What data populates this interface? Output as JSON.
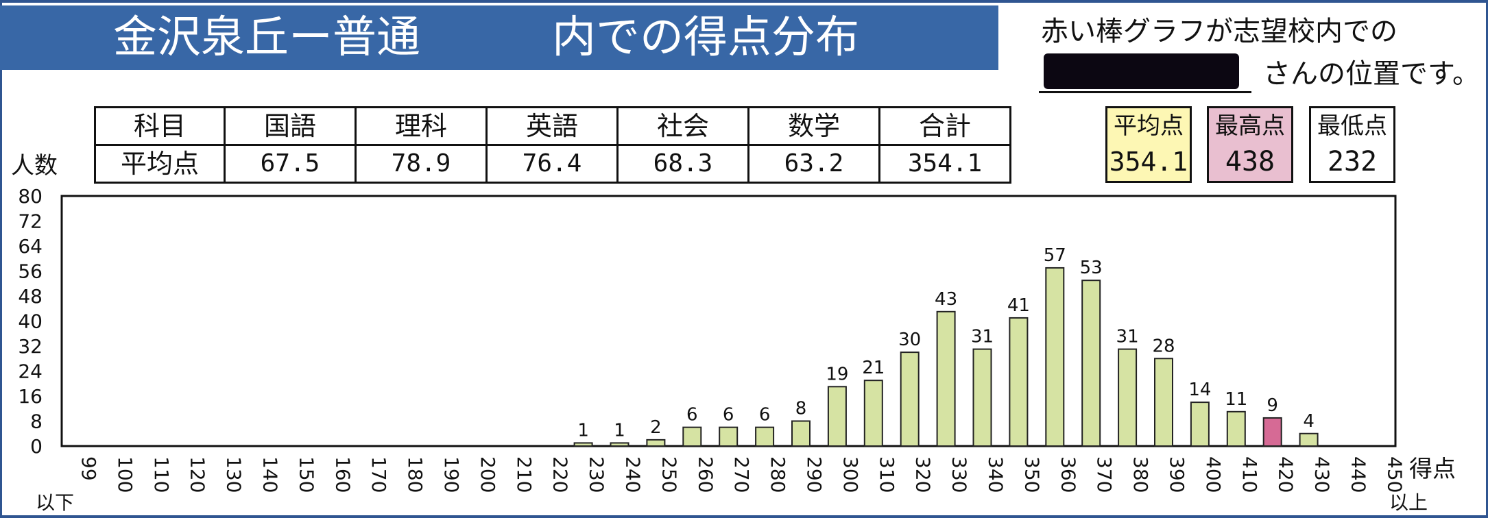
{
  "title": {
    "school": "金沢泉丘ー普通",
    "suffix": "内での得点分布"
  },
  "note": {
    "line1": "赤い棒グラフが志望校内での",
    "line2": "さんの位置です。"
  },
  "summary_table": {
    "header": [
      "科目",
      "国語",
      "理科",
      "英語",
      "社会",
      "数学",
      "合計"
    ],
    "row": [
      "平均点",
      "67.5",
      "78.9",
      "76.4",
      "68.3",
      "63.2",
      "354.1"
    ]
  },
  "stats": {
    "average_label": "平均点",
    "average": "354.1",
    "max_label": "最高点",
    "max": "438",
    "min_label": "最低点",
    "min": "232"
  },
  "labels": {
    "below": "以下",
    "above": "以上"
  },
  "colors": {
    "banner": "#3867a6",
    "bar": "#d6e3a3",
    "highlight_bar": "#d66a95",
    "average_box": "#fdf7b4",
    "max_box": "#e9bfd0"
  },
  "chart_data": {
    "type": "bar",
    "xlabel": "得点",
    "ylabel": "人数",
    "ylim": [
      0,
      80
    ],
    "yticks": [
      0,
      8,
      16,
      24,
      32,
      40,
      48,
      56,
      64,
      72,
      80
    ],
    "categories": [
      "99",
      "100",
      "110",
      "120",
      "130",
      "140",
      "150",
      "160",
      "170",
      "180",
      "190",
      "200",
      "210",
      "220",
      "230",
      "240",
      "250",
      "260",
      "270",
      "280",
      "290",
      "300",
      "310",
      "320",
      "330",
      "340",
      "350",
      "360",
      "370",
      "380",
      "390",
      "400",
      "410",
      "420",
      "430",
      "440",
      "450"
    ],
    "values": [
      0,
      0,
      0,
      0,
      0,
      0,
      0,
      0,
      0,
      0,
      0,
      0,
      0,
      0,
      1,
      1,
      2,
      6,
      6,
      6,
      8,
      19,
      21,
      30,
      43,
      31,
      41,
      57,
      53,
      31,
      28,
      14,
      11,
      9,
      4,
      0,
      0
    ],
    "highlight_category": "420",
    "grid": false
  }
}
